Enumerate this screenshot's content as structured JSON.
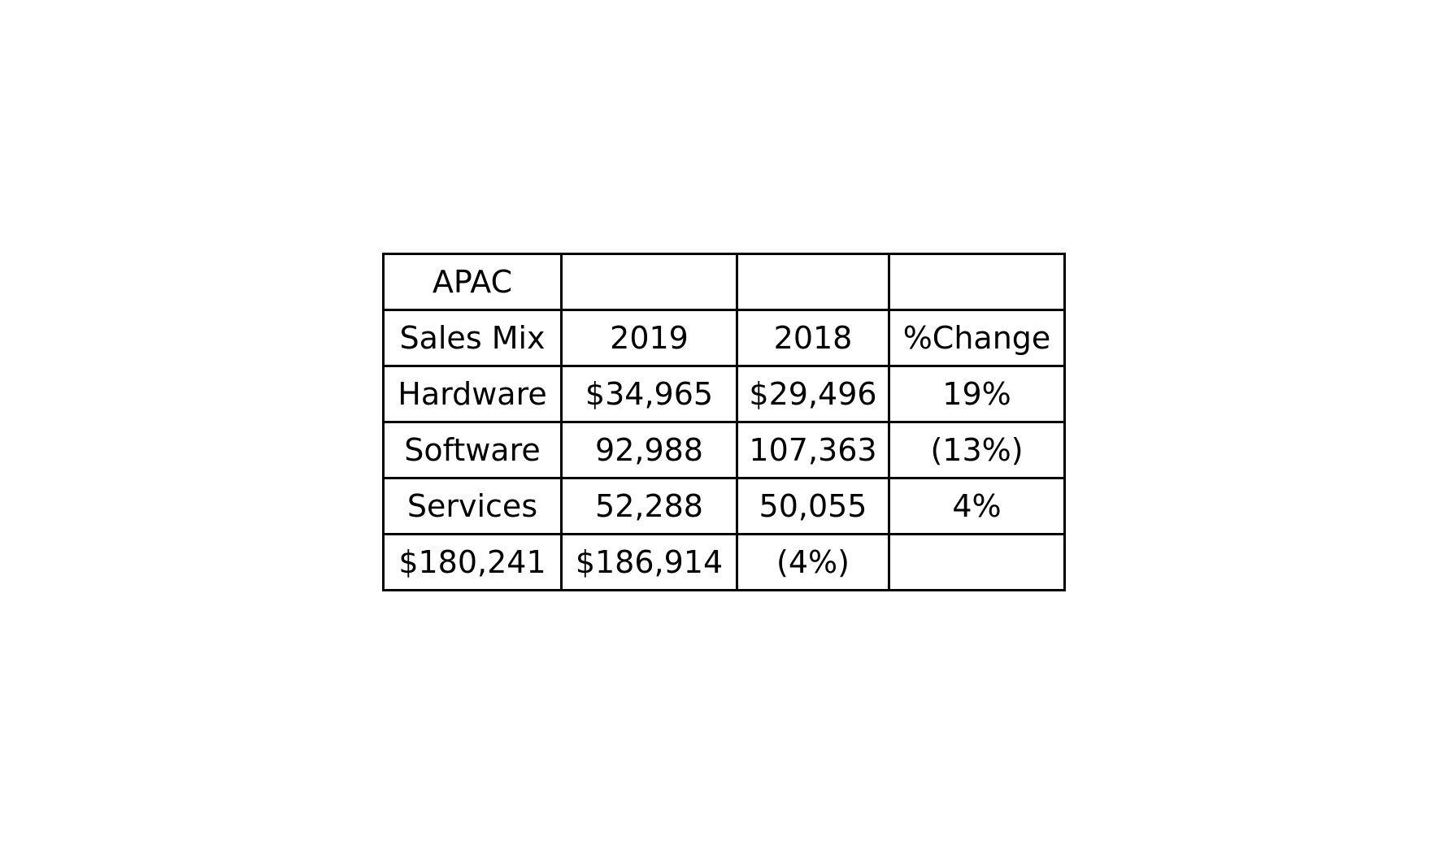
{
  "chart_data": {
    "type": "table",
    "rows": [
      [
        "APAC",
        "",
        "",
        ""
      ],
      [
        "Sales Mix",
        "2019",
        "2018",
        "%Change"
      ],
      [
        "Hardware",
        "$34,965",
        "$29,496",
        "19%"
      ],
      [
        "Software",
        "92,988",
        "107,363",
        "(13%)"
      ],
      [
        "Services",
        "52,288",
        "50,055",
        "4%"
      ],
      [
        "$180,241",
        "$186,914",
        "(4%)",
        ""
      ]
    ]
  }
}
